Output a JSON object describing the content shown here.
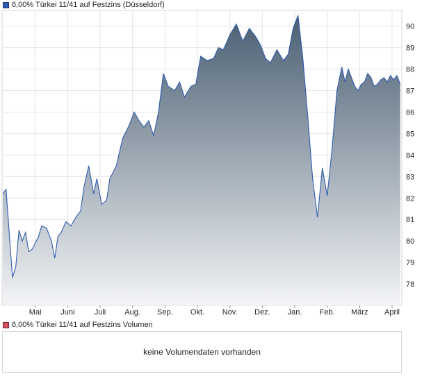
{
  "legend": {
    "price_label": "6,00% Türkei 11/41 auf Festzins (Düsseldorf)",
    "volume_label": "6,00% Türkei 11/41 auf Festzins Volumen"
  },
  "volume_panel": {
    "message": "keine Volumendaten vorhanden"
  },
  "colors": {
    "line": "#2f5bb0",
    "fill_top": "#4a5f72",
    "fill_bottom": "#f3f4f6",
    "grid": "#e4e4e4"
  },
  "chart_data": {
    "type": "area",
    "title": "",
    "xlabel": "",
    "ylabel": "",
    "ylim": [
      77,
      90.7
    ],
    "grid": true,
    "y_ticks": [
      "78",
      "79",
      "80",
      "81",
      "82",
      "83",
      "84",
      "85",
      "86",
      "87",
      "88",
      "89",
      "90"
    ],
    "x_ticks": [
      "Mai",
      "Juni",
      "Juli",
      "Aug.",
      "Sep.",
      "Okt.",
      "Nov.",
      "Dez.",
      "Jan.",
      "Feb.",
      "März",
      "April"
    ],
    "x_tick_pos": [
      0.5,
      1.5,
      2.5,
      3.5,
      4.5,
      5.5,
      6.5,
      7.5,
      8.5,
      9.5,
      10.5,
      11.5
    ],
    "x_range": [
      -0.5,
      11.8
    ],
    "series": [
      {
        "x": [
          -0.5,
          -0.4,
          -0.33,
          -0.27,
          -0.2,
          -0.1,
          0.0,
          0.1,
          0.2,
          0.3,
          0.4,
          0.5,
          0.6,
          0.7,
          0.85,
          1.0,
          1.1,
          1.2,
          1.3,
          1.45,
          1.6,
          1.75,
          1.9,
          2.0,
          2.15,
          2.3,
          2.4,
          2.55,
          2.7,
          2.8,
          2.9,
          3.0,
          3.2,
          3.4,
          3.55,
          3.7,
          3.85,
          4.0,
          4.15,
          4.3,
          4.45,
          4.6,
          4.7,
          4.8,
          4.95,
          5.1,
          5.3,
          5.45,
          5.6,
          5.8,
          6.0,
          6.15,
          6.3,
          6.5,
          6.7,
          6.9,
          7.1,
          7.3,
          7.45,
          7.6,
          7.75,
          7.95,
          8.15,
          8.3,
          8.45,
          8.6,
          8.75,
          8.9,
          9.05,
          9.2,
          9.35,
          9.5,
          9.65,
          9.8,
          9.95,
          10.05,
          10.15,
          10.25,
          10.35,
          10.45,
          10.55,
          10.65,
          10.75,
          10.85,
          10.95,
          11.05,
          11.15,
          11.25,
          11.35,
          11.45,
          11.55,
          11.65,
          11.75
        ],
        "y": [
          82.2,
          82.4,
          81.0,
          79.7,
          78.3,
          78.8,
          80.5,
          80.0,
          80.4,
          79.5,
          79.6,
          79.9,
          80.2,
          80.7,
          80.6,
          80.0,
          79.2,
          80.2,
          80.4,
          80.9,
          80.7,
          81.1,
          81.4,
          82.5,
          83.5,
          82.2,
          82.9,
          81.7,
          81.9,
          82.9,
          83.2,
          83.5,
          84.8,
          85.4,
          86.0,
          85.6,
          85.3,
          85.6,
          84.9,
          86.0,
          87.8,
          87.2,
          87.1,
          87.0,
          87.4,
          86.7,
          87.2,
          87.3,
          88.6,
          88.4,
          88.5,
          89.0,
          88.9,
          89.6,
          90.1,
          89.3,
          89.9,
          89.5,
          89.1,
          88.5,
          88.3,
          88.9,
          88.4,
          88.7,
          89.9,
          90.5,
          88.5,
          85.8,
          82.9,
          81.1,
          83.4,
          82.1,
          84.3,
          87.0,
          88.1,
          87.4,
          88.0,
          87.6,
          87.2,
          87.0,
          87.3,
          87.4,
          87.8,
          87.6,
          87.2,
          87.3,
          87.5,
          87.6,
          87.4,
          87.7,
          87.5,
          87.7,
          87.3
        ]
      }
    ]
  }
}
